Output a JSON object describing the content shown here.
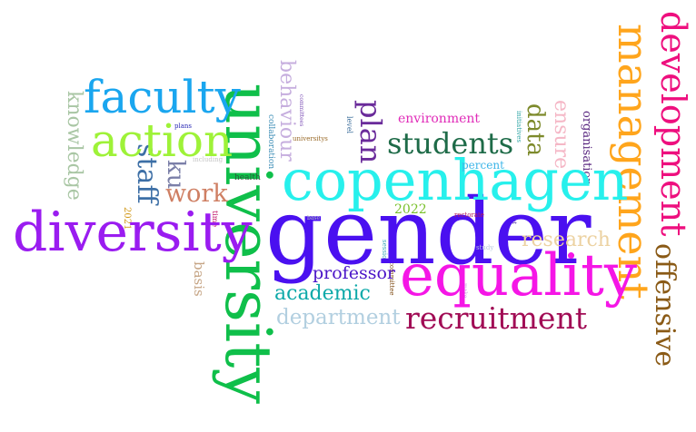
{
  "words": {
    "gender": "gender",
    "university": "university",
    "copenhagen": "copenhagen",
    "equality": "equality",
    "diversity": "diversity",
    "management": "management",
    "development": "development",
    "faculty": "faculty",
    "action": "action",
    "students": "students",
    "recruitment": "recruitment",
    "plan": "plan",
    "staff": "staff",
    "offensive": "offensive",
    "work": "work",
    "academic": "academic",
    "department": "department",
    "data": "data",
    "ensure": "ensure",
    "research": "research",
    "professor": "professor",
    "ku": "ku",
    "knowledge": "knowledge",
    "behaviour": "behaviour",
    "environment": "environment",
    "organisation": "organisation",
    "year_2022": "2022",
    "percent": "percent",
    "basis": "basis",
    "year_2021": "2021",
    "health": "health",
    "collaboration": "collaboration",
    "committees": "committees",
    "plans": "plans",
    "including": "including",
    "universitys": "universitys",
    "level": "level",
    "time": "time",
    "rectorate": "rectorate",
    "committee": "committee",
    "session": "session",
    "study": "study",
    "make": "make",
    "initiatives": "initiatives",
    "set": "set",
    "base": "base"
  }
}
